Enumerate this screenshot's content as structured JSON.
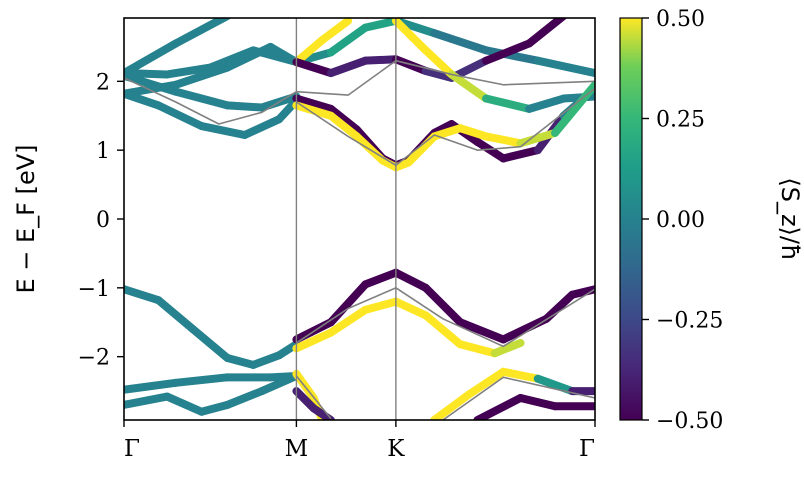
{
  "chart_data": {
    "type": "line",
    "title": "",
    "ylabel": "E − E_F [eV]",
    "xlabel": "",
    "ylim": [
      -2.92,
      2.92
    ],
    "yticks": [
      -2,
      -1,
      0,
      1,
      2
    ],
    "xticks": [
      {
        "label": "Γ",
        "k": 0.0
      },
      {
        "label": "M",
        "k": 1.0
      },
      {
        "label": "K",
        "k": 1.577
      },
      {
        "label": "Γ",
        "k": 2.732
      }
    ],
    "k_vlines": [
      1.0,
      1.577
    ],
    "colorbar": {
      "label": "⟨S_z⟩/ħ",
      "cmap": "viridis",
      "range": [
        -0.5,
        0.5
      ],
      "ticks": [
        "0.50",
        "0.25",
        "0.00",
        "−0.25",
        "−0.50"
      ],
      "tick_values": [
        0.5,
        0.25,
        0.0,
        -0.25,
        -0.5
      ]
    },
    "series": [
      {
        "kind": "spin",
        "points": [
          [
            0,
            2.12
          ],
          [
            0.25,
            2.1
          ],
          [
            0.5,
            2.2
          ],
          [
            0.75,
            2.45
          ],
          [
            1.0,
            2.28
          ],
          [
            1.2,
            2.42
          ],
          [
            1.4,
            2.78
          ],
          [
            1.577,
            2.88
          ],
          [
            1.8,
            2.7
          ],
          [
            2.1,
            2.45
          ],
          [
            2.4,
            2.3
          ],
          [
            2.732,
            2.12
          ]
        ],
        "sz": [
          0,
          0,
          0,
          0,
          0,
          0.1,
          0.2,
          0.1,
          0.0,
          -0.1,
          0.0,
          0
        ]
      },
      {
        "kind": "spin",
        "points": [
          [
            0,
            2.12
          ],
          [
            0.3,
            2.55
          ],
          [
            0.6,
            2.95
          ]
        ],
        "sz": [
          0,
          0,
          0
        ]
      },
      {
        "kind": "spin",
        "points": [
          [
            0,
            1.82
          ],
          [
            0.3,
            1.95
          ],
          [
            0.6,
            2.2
          ],
          [
            0.85,
            2.5
          ],
          [
            1.0,
            2.28
          ]
        ],
        "sz": [
          0,
          0,
          0,
          0,
          0
        ]
      },
      {
        "kind": "spin",
        "points": [
          [
            0,
            1.82
          ],
          [
            0.2,
            1.65
          ],
          [
            0.45,
            1.35
          ],
          [
            0.7,
            1.22
          ],
          [
            0.9,
            1.45
          ],
          [
            1.0,
            1.72
          ]
        ],
        "sz": [
          0,
          0,
          0,
          0,
          0,
          0
        ]
      },
      {
        "kind": "spin",
        "points": [
          [
            0,
            2.08
          ],
          [
            0.3,
            1.85
          ],
          [
            0.6,
            1.65
          ],
          [
            0.8,
            1.62
          ],
          [
            1.0,
            1.78
          ]
        ],
        "sz": [
          0,
          0,
          0,
          0,
          0
        ]
      },
      {
        "kind": "spin",
        "points": [
          [
            1.0,
            2.28
          ],
          [
            1.15,
            2.6
          ],
          [
            1.3,
            2.88
          ]
        ],
        "sz": [
          0.5,
          0.5,
          0.5
        ]
      },
      {
        "kind": "spin",
        "points": [
          [
            1.0,
            2.28
          ],
          [
            1.2,
            2.12
          ],
          [
            1.4,
            2.3
          ],
          [
            1.577,
            2.32
          ],
          [
            1.75,
            2.15
          ],
          [
            1.9,
            2.05
          ],
          [
            2.1,
            2.3
          ],
          [
            2.35,
            2.55
          ],
          [
            2.55,
            2.95
          ]
        ],
        "sz": [
          -0.5,
          -0.5,
          -0.3,
          -0.5,
          -0.5,
          -0.2,
          -0.5,
          -0.5,
          -0.5
        ]
      },
      {
        "kind": "spin",
        "points": [
          [
            1.577,
            2.88
          ],
          [
            1.75,
            2.45
          ],
          [
            1.9,
            2.1
          ],
          [
            2.1,
            1.75
          ],
          [
            2.35,
            1.6
          ],
          [
            2.55,
            1.75
          ],
          [
            2.732,
            1.78
          ]
        ],
        "sz": [
          0.5,
          0.5,
          0.5,
          0.4,
          0.0,
          0.0,
          0.0
        ]
      },
      {
        "kind": "spin",
        "points": [
          [
            1.0,
            1.75
          ],
          [
            1.2,
            1.6
          ],
          [
            1.35,
            1.3
          ],
          [
            1.5,
            0.88
          ],
          [
            1.577,
            0.78
          ],
          [
            1.65,
            0.85
          ],
          [
            1.8,
            1.25
          ],
          [
            1.9,
            1.38
          ],
          [
            2.05,
            1.12
          ],
          [
            2.2,
            0.88
          ],
          [
            2.4,
            1.0
          ],
          [
            2.55,
            1.5
          ],
          [
            2.732,
            1.9
          ]
        ],
        "sz": [
          -0.5,
          -0.5,
          -0.5,
          -0.5,
          -0.5,
          -0.5,
          -0.5,
          -0.5,
          -0.5,
          -0.5,
          -0.5,
          -0.3,
          0.3
        ]
      },
      {
        "kind": "spin",
        "points": [
          [
            1.0,
            1.65
          ],
          [
            1.2,
            1.5
          ],
          [
            1.35,
            1.2
          ],
          [
            1.5,
            0.85
          ],
          [
            1.577,
            0.75
          ],
          [
            1.65,
            0.82
          ],
          [
            1.8,
            1.2
          ],
          [
            1.95,
            1.32
          ],
          [
            2.1,
            1.2
          ],
          [
            2.3,
            1.1
          ],
          [
            2.5,
            1.25
          ],
          [
            2.732,
            1.95
          ]
        ],
        "sz": [
          0.5,
          0.5,
          0.5,
          0.5,
          0.5,
          0.5,
          0.5,
          0.5,
          0.5,
          0.5,
          0.4,
          0.1
        ]
      },
      {
        "kind": "spin",
        "points": [
          [
            0,
            -1.02
          ],
          [
            0.2,
            -1.18
          ],
          [
            0.4,
            -1.6
          ],
          [
            0.6,
            -2.02
          ],
          [
            0.75,
            -2.12
          ],
          [
            0.9,
            -1.98
          ],
          [
            1.0,
            -1.82
          ]
        ],
        "sz": [
          0,
          0,
          0,
          0,
          0,
          0,
          0
        ]
      },
      {
        "kind": "spin",
        "points": [
          [
            1.0,
            -1.75
          ],
          [
            1.2,
            -1.5
          ],
          [
            1.4,
            -0.95
          ],
          [
            1.577,
            -0.78
          ],
          [
            1.75,
            -1.0
          ],
          [
            1.95,
            -1.5
          ],
          [
            2.2,
            -1.75
          ],
          [
            2.45,
            -1.45
          ],
          [
            2.6,
            -1.1
          ],
          [
            2.732,
            -1.02
          ]
        ],
        "sz": [
          -0.5,
          -0.5,
          -0.5,
          -0.5,
          -0.5,
          -0.5,
          -0.5,
          -0.5,
          -0.5,
          -0.5
        ]
      },
      {
        "kind": "spin",
        "points": [
          [
            1.0,
            -1.88
          ],
          [
            1.2,
            -1.65
          ],
          [
            1.4,
            -1.32
          ],
          [
            1.577,
            -1.2
          ],
          [
            1.75,
            -1.4
          ],
          [
            1.95,
            -1.82
          ],
          [
            2.15,
            -1.95
          ],
          [
            2.3,
            -1.8
          ]
        ],
        "sz": [
          0.5,
          0.5,
          0.5,
          0.5,
          0.5,
          0.5,
          0.5,
          0.4
        ]
      },
      {
        "kind": "spin",
        "points": [
          [
            0,
            -2.48
          ],
          [
            0.3,
            -2.38
          ],
          [
            0.6,
            -2.3
          ],
          [
            0.85,
            -2.3
          ],
          [
            1.0,
            -2.28
          ]
        ],
        "sz": [
          0,
          0,
          0,
          0,
          0
        ]
      },
      {
        "kind": "spin",
        "points": [
          [
            0,
            -2.7
          ],
          [
            0.25,
            -2.58
          ],
          [
            0.45,
            -2.8
          ],
          [
            0.6,
            -2.7
          ],
          [
            0.8,
            -2.5
          ],
          [
            1.0,
            -2.28
          ]
        ],
        "sz": [
          0,
          0,
          0,
          0,
          0,
          0
        ]
      },
      {
        "kind": "spin",
        "points": [
          [
            1.0,
            -2.25
          ],
          [
            1.1,
            -2.6
          ],
          [
            1.15,
            -2.92
          ]
        ],
        "sz": [
          0.5,
          0.5,
          0.5
        ]
      },
      {
        "kind": "spin",
        "points": [
          [
            1.0,
            -2.5
          ],
          [
            1.1,
            -2.75
          ],
          [
            1.2,
            -2.92
          ]
        ],
        "sz": [
          -0.4,
          -0.4,
          -0.4
        ]
      },
      {
        "kind": "spin",
        "points": [
          [
            1.8,
            -2.92
          ],
          [
            2.0,
            -2.55
          ],
          [
            2.2,
            -2.22
          ],
          [
            2.4,
            -2.32
          ],
          [
            2.6,
            -2.5
          ],
          [
            2.732,
            -2.5
          ]
        ],
        "sz": [
          0.5,
          0.5,
          0.5,
          0.5,
          -0.3,
          -0.5
        ]
      },
      {
        "kind": "spin",
        "points": [
          [
            2.05,
            -2.92
          ],
          [
            2.3,
            -2.6
          ],
          [
            2.5,
            -2.72
          ],
          [
            2.732,
            -2.72
          ]
        ],
        "sz": [
          -0.5,
          -0.5,
          -0.5,
          -0.5
        ]
      },
      {
        "kind": "plain",
        "points": [
          [
            0,
            2.05
          ],
          [
            0.3,
            1.7
          ],
          [
            0.55,
            1.38
          ],
          [
            0.8,
            1.55
          ],
          [
            1.0,
            1.85
          ],
          [
            1.3,
            1.8
          ],
          [
            1.577,
            2.3
          ],
          [
            1.9,
            2.1
          ],
          [
            2.2,
            1.95
          ],
          [
            2.732,
            2.0
          ]
        ]
      },
      {
        "kind": "plain",
        "points": [
          [
            1.0,
            1.7
          ],
          [
            1.3,
            1.2
          ],
          [
            1.577,
            0.78
          ],
          [
            1.8,
            1.22
          ],
          [
            2.05,
            1.0
          ],
          [
            2.3,
            1.05
          ],
          [
            2.732,
            1.9
          ]
        ]
      },
      {
        "kind": "plain",
        "points": [
          [
            1.0,
            -1.8
          ],
          [
            1.3,
            -1.3
          ],
          [
            1.577,
            -1.0
          ],
          [
            1.85,
            -1.45
          ],
          [
            2.2,
            -1.85
          ],
          [
            2.732,
            -1.02
          ]
        ]
      },
      {
        "kind": "plain",
        "points": [
          [
            1.0,
            -2.28
          ],
          [
            1.2,
            -2.9
          ]
        ]
      },
      {
        "kind": "plain",
        "points": [
          [
            1.85,
            -2.92
          ],
          [
            2.2,
            -2.3
          ],
          [
            2.732,
            -2.6
          ]
        ]
      }
    ]
  }
}
